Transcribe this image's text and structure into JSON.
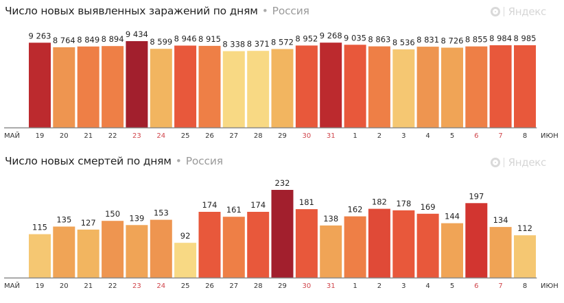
{
  "brand": {
    "name": "Яндекс",
    "icon": "yandex-logo-icon"
  },
  "colors": {
    "axis": "#8a8a8a",
    "weekend_tick": "#d0454b",
    "normal_tick": "#333333"
  },
  "chart_data": [
    {
      "type": "bar",
      "title": "Число новых выявленных заражений по дням",
      "separator": "•",
      "region": "Россия",
      "month_start": "МАЙ",
      "month_end": "ИЮН",
      "categories": [
        "19",
        "20",
        "21",
        "22",
        "23",
        "24",
        "25",
        "26",
        "27",
        "28",
        "29",
        "30",
        "31",
        "1",
        "2",
        "3",
        "4",
        "5",
        "6",
        "7",
        "8"
      ],
      "weekend": [
        false,
        false,
        false,
        false,
        true,
        true,
        false,
        false,
        false,
        false,
        false,
        true,
        true,
        false,
        false,
        false,
        false,
        false,
        true,
        true,
        false
      ],
      "values": [
        9263,
        8764,
        8849,
        8894,
        9434,
        8599,
        8946,
        8915,
        8338,
        8371,
        8572,
        8952,
        9268,
        9035,
        8863,
        8536,
        8831,
        8726,
        8855,
        8984,
        8985
      ],
      "labels": [
        "9 263",
        "8 764",
        "8 849",
        "8 894",
        "9 434",
        "8 599",
        "8 946",
        "8 915",
        "8 338",
        "8 371",
        "8 572",
        "8 952",
        "9 268",
        "9 035",
        "8 863",
        "8 536",
        "8 831",
        "8 726",
        "8 855",
        "8 984",
        "8 985"
      ],
      "bar_colors": [
        "#bc2a2e",
        "#ee9550",
        "#ee7f46",
        "#ee7f46",
        "#a21f2d",
        "#f2b560",
        "#e8583b",
        "#ee7f46",
        "#f8d984",
        "#f8d984",
        "#f2b560",
        "#e8583b",
        "#bc2a2e",
        "#e8583b",
        "#ee7f46",
        "#f5c772",
        "#ee9550",
        "#f0a456",
        "#ee7f46",
        "#e8583b",
        "#e8583b"
      ],
      "ylim": [
        0,
        9434
      ]
    },
    {
      "type": "bar",
      "title": "Число новых смертей по дням",
      "separator": "•",
      "region": "Россия",
      "month_start": "МАЙ",
      "month_end": "ИЮН",
      "categories": [
        "19",
        "20",
        "21",
        "22",
        "23",
        "24",
        "25",
        "26",
        "27",
        "28",
        "29",
        "30",
        "31",
        "1",
        "2",
        "3",
        "4",
        "5",
        "6",
        "7",
        "8"
      ],
      "weekend": [
        false,
        false,
        false,
        false,
        true,
        true,
        false,
        false,
        false,
        false,
        false,
        true,
        true,
        false,
        false,
        false,
        false,
        false,
        true,
        true,
        false
      ],
      "values": [
        115,
        135,
        127,
        150,
        139,
        153,
        92,
        174,
        161,
        174,
        232,
        181,
        138,
        162,
        182,
        178,
        169,
        144,
        197,
        134,
        112
      ],
      "labels": [
        "115",
        "135",
        "127",
        "150",
        "139",
        "153",
        "92",
        "174",
        "161",
        "174",
        "232",
        "181",
        "138",
        "162",
        "182",
        "178",
        "169",
        "144",
        "197",
        "134",
        "112"
      ],
      "bar_colors": [
        "#f5c772",
        "#f0a456",
        "#f2b560",
        "#ee9550",
        "#f0a456",
        "#ee9550",
        "#f8d984",
        "#e8583b",
        "#ee7f46",
        "#e8583b",
        "#a21f2d",
        "#e8583b",
        "#f0a456",
        "#ee7f46",
        "#e04a37",
        "#e8583b",
        "#e8583b",
        "#f0a456",
        "#d23530",
        "#f0a456",
        "#f5c772"
      ],
      "ylim": [
        0,
        232
      ]
    }
  ]
}
